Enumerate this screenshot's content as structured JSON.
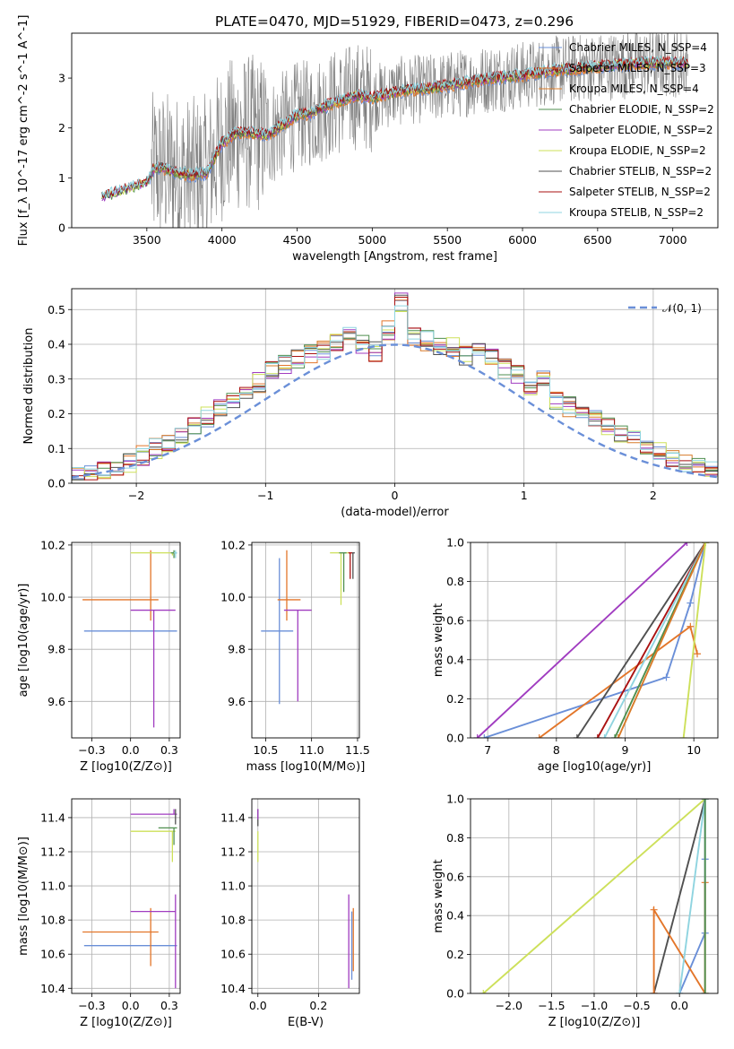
{
  "title": "PLATE=0470, MJD=51929, FIBERID=0473, z=0.296",
  "model_names": [
    "Chabrier MILES",
    "Salpeter MILES",
    "Kroupa MILES",
    "Chabrier ELODIE",
    "Salpeter ELODIE",
    "Kroupa ELODIE",
    "Chabrier STELIB",
    "Salpeter STELIB",
    "Kroupa STELIB"
  ],
  "model_nssp": [
    4,
    3,
    4,
    2,
    2,
    2,
    2,
    2,
    2
  ],
  "model_colors": [
    "#6a8fd8",
    "#e3762a",
    "#d87b2a",
    "#4f8f4f",
    "#a03cc0",
    "#cde05a",
    "#505050",
    "#aa1111",
    "#8fd4e0"
  ],
  "chart_data": [
    {
      "id": "spectrum",
      "type": "line",
      "title": "PLATE=0470, MJD=51929, FIBERID=0473, z=0.296",
      "xlabel": "wavelength [Angstrom, rest frame]",
      "ylabel": "Flux [f_λ 10^-17 erg cm^-2 s^-1 A^-1]",
      "xlim": [
        3000,
        7300
      ],
      "ylim": [
        0,
        3.9
      ],
      "xticks": [
        3500,
        4000,
        4500,
        5000,
        5500,
        6000,
        6500,
        7000
      ],
      "yticks": [
        0,
        1,
        2,
        3
      ],
      "legend": "top-right",
      "legend_entries": [
        "Chabrier MILES, N_SSP=4",
        "Salpeter MILES, N_SSP=3",
        "Kroupa MILES, N_SSP=4",
        "Chabrier ELODIE, N_SSP=2",
        "Salpeter ELODIE, N_SSP=2",
        "Kroupa ELODIE, N_SSP=2",
        "Chabrier STELIB, N_SSP=2",
        "Salpeter STELIB, N_SSP=2",
        "Kroupa STELIB, N_SSP=2"
      ],
      "model_shape": {
        "x": [
          3200,
          3300,
          3400,
          3500,
          3550,
          3600,
          3700,
          3800,
          3900,
          4000,
          4100,
          4200,
          4300,
          4400,
          4500,
          4600,
          4700,
          4800,
          4900,
          5000,
          5200,
          5400,
          5600,
          5800,
          6000,
          6200,
          6400,
          6600,
          6800,
          7000,
          7100
        ],
        "y": [
          0.6,
          0.7,
          0.8,
          0.9,
          1.2,
          1.2,
          1.1,
          1.05,
          1.1,
          1.7,
          1.9,
          1.9,
          1.85,
          2.05,
          2.25,
          2.3,
          2.45,
          2.55,
          2.65,
          2.6,
          2.75,
          2.8,
          2.9,
          3.0,
          3.05,
          3.15,
          3.2,
          3.25,
          3.3,
          3.3,
          3.3
        ]
      }
    },
    {
      "id": "residuals",
      "type": "step",
      "xlabel": "(data-model)/error",
      "ylabel": "Normed distribution",
      "xlim": [
        -2.5,
        2.5
      ],
      "ylim": [
        0,
        0.56
      ],
      "xticks": [
        -2,
        -1,
        0,
        1,
        2
      ],
      "yticks": [
        0.0,
        0.1,
        0.2,
        0.3,
        0.4,
        0.5
      ],
      "legend": "top-right",
      "legend_entries": [
        "𝒩(0, 1)"
      ],
      "bin_centers": [
        -2.45,
        -2.35,
        -2.25,
        -2.15,
        -2.05,
        -1.95,
        -1.85,
        -1.75,
        -1.65,
        -1.55,
        -1.45,
        -1.35,
        -1.25,
        -1.15,
        -1.05,
        -0.95,
        -0.85,
        -0.75,
        -0.65,
        -0.55,
        -0.45,
        -0.35,
        -0.25,
        -0.15,
        -0.05,
        0.05,
        0.15,
        0.25,
        0.35,
        0.45,
        0.55,
        0.65,
        0.75,
        0.85,
        0.95,
        1.05,
        1.15,
        1.25,
        1.35,
        1.45,
        1.55,
        1.65,
        1.75,
        1.85,
        1.95,
        2.05,
        2.15,
        2.25,
        2.35,
        2.45
      ],
      "hist_reference": [
        0.02,
        0.03,
        0.04,
        0.05,
        0.06,
        0.08,
        0.1,
        0.12,
        0.14,
        0.17,
        0.19,
        0.22,
        0.24,
        0.27,
        0.29,
        0.32,
        0.34,
        0.36,
        0.37,
        0.38,
        0.4,
        0.44,
        0.4,
        0.38,
        0.44,
        0.52,
        0.42,
        0.41,
        0.4,
        0.39,
        0.37,
        0.38,
        0.36,
        0.33,
        0.31,
        0.28,
        0.3,
        0.24,
        0.22,
        0.2,
        0.19,
        0.16,
        0.14,
        0.13,
        0.1,
        0.09,
        0.07,
        0.06,
        0.05,
        0.04
      ],
      "normal_curve": {
        "mu": 0,
        "sigma": 1
      }
    },
    {
      "id": "age-vs-z",
      "type": "errorbar",
      "xlabel": "Z [log10(Z/Z⊙)]",
      "ylabel": "age  [log10(age/yr)]",
      "xlim": [
        -0.38,
        0.32
      ],
      "ylim": [
        9.46,
        10.21
      ],
      "xticks": [
        -0.25,
        0.0,
        0.25
      ],
      "yticks": [
        9.6,
        9.8,
        10.0,
        10.2
      ],
      "points": [
        {
          "x": 0.2,
          "y": 9.87,
          "xerr": [
            0.5,
            0.1
          ],
          "yerr": [
            0.0,
            0.0
          ],
          "series": 0
        },
        {
          "x": 0.13,
          "y": 9.99,
          "xerr": [
            0.44,
            0.05
          ],
          "yerr": [
            0.08,
            0.19
          ],
          "series": 1
        },
        {
          "x": 0.15,
          "y": 9.95,
          "xerr": [
            0.15,
            0.14
          ],
          "yerr": [
            0.45,
            0.0
          ],
          "series": 4
        },
        {
          "x": 0.27,
          "y": 10.17,
          "xerr": [
            0.27,
            0.02
          ],
          "yerr": [
            0.01,
            0.0
          ],
          "series": 5
        },
        {
          "x": 0.28,
          "y": 10.17,
          "xerr": [
            0.02,
            0.02
          ],
          "yerr": [
            0.02,
            0.01
          ],
          "series": 3
        },
        {
          "x": 0.29,
          "y": 10.17,
          "xerr": [
            0.01,
            0.01
          ],
          "yerr": [
            0.02,
            0.01
          ],
          "series": 8
        }
      ]
    },
    {
      "id": "age-vs-mass",
      "type": "errorbar",
      "xlabel": "mass [log10(M/M⊙)]",
      "ylabel": "",
      "xlim": [
        10.35,
        11.52
      ],
      "ylim": [
        9.46,
        10.21
      ],
      "xticks": [
        10.5,
        11.0,
        11.5
      ],
      "yticks": [
        9.6,
        9.8,
        10.0,
        10.2
      ],
      "points": [
        {
          "x": 10.65,
          "y": 9.87,
          "xerr": [
            0.2,
            0.15
          ],
          "yerr": [
            0.28,
            0.28
          ],
          "series": 0
        },
        {
          "x": 10.73,
          "y": 9.99,
          "xerr": [
            0.1,
            0.15
          ],
          "yerr": [
            0.08,
            0.19
          ],
          "series": 1
        },
        {
          "x": 10.85,
          "y": 9.95,
          "xerr": [
            0.15,
            0.15
          ],
          "yerr": [
            0.35,
            0.0
          ],
          "series": 4
        },
        {
          "x": 11.32,
          "y": 10.17,
          "xerr": [
            0.12,
            0.1
          ],
          "yerr": [
            0.2,
            0.0
          ],
          "series": 5
        },
        {
          "x": 11.35,
          "y": 10.17,
          "xerr": [
            0.05,
            0.03
          ],
          "yerr": [
            0.15,
            0.0
          ],
          "series": 3
        },
        {
          "x": 11.42,
          "y": 10.17,
          "xerr": [
            0.02,
            0.03
          ],
          "yerr": [
            0.1,
            0.0
          ],
          "series": 7
        },
        {
          "x": 11.45,
          "y": 10.17,
          "xerr": [
            0.01,
            0.02
          ],
          "yerr": [
            0.1,
            0.0
          ],
          "series": 6
        }
      ]
    },
    {
      "id": "weight-vs-age",
      "type": "line",
      "xlabel": "age  [log10(age/yr)]",
      "ylabel": "mass weight",
      "xlim": [
        6.75,
        10.35
      ],
      "ylim": [
        0,
        1.0
      ],
      "xticks": [
        7,
        8,
        9,
        10
      ],
      "yticks": [
        0.0,
        0.2,
        0.4,
        0.6,
        0.8,
        1.0
      ],
      "series": [
        {
          "x": [
            6.95,
            9.6,
            9.95,
            10.17
          ],
          "y": [
            0.0,
            0.31,
            0.69,
            1.0
          ],
          "color": 0
        },
        {
          "x": [
            7.75,
            9.95,
            10.05
          ],
          "y": [
            0.0,
            0.57,
            0.43
          ],
          "color": 1
        },
        {
          "x": [
            6.85,
            9.9
          ],
          "y": [
            0.0,
            1.0
          ],
          "color": 4
        },
        {
          "x": [
            8.3,
            10.17
          ],
          "y": [
            0.0,
            1.0
          ],
          "color": 6
        },
        {
          "x": [
            8.6,
            10.17
          ],
          "y": [
            0.0,
            1.0
          ],
          "color": 7
        },
        {
          "x": [
            8.7,
            10.17
          ],
          "y": [
            0.0,
            1.0
          ],
          "color": 8
        },
        {
          "x": [
            8.85,
            10.17
          ],
          "y": [
            0.0,
            1.0
          ],
          "color": 3
        },
        {
          "x": [
            8.9,
            10.17
          ],
          "y": [
            0.0,
            1.0
          ],
          "color": 2
        },
        {
          "x": [
            9.85,
            10.17
          ],
          "y": [
            0.0,
            1.0
          ],
          "color": 5
        }
      ]
    },
    {
      "id": "mass-vs-z",
      "type": "errorbar",
      "xlabel": "Z [log10(Z/Z⊙)]",
      "ylabel": "mass [log10(M/M⊙)]",
      "xlim": [
        -0.38,
        0.32
      ],
      "ylim": [
        10.37,
        11.51
      ],
      "xticks": [
        -0.25,
        0.0,
        0.25
      ],
      "yticks": [
        10.4,
        10.6,
        10.8,
        11.0,
        11.2,
        11.4
      ],
      "points": [
        {
          "x": 0.2,
          "y": 10.65,
          "xerr": [
            0.5,
            0.1
          ],
          "yerr": [
            0.0,
            0.0
          ],
          "series": 0
        },
        {
          "x": 0.13,
          "y": 10.73,
          "xerr": [
            0.44,
            0.05
          ],
          "yerr": [
            0.2,
            0.14
          ],
          "series": 1
        },
        {
          "x": 0.15,
          "y": 10.85,
          "xerr": [
            0.15,
            0.14
          ],
          "yerr": [
            0.0,
            0.0
          ],
          "series": 4
        },
        {
          "x": 0.29,
          "y": 10.82,
          "xerr": [
            0.0,
            0.0
          ],
          "yerr": [
            0.42,
            0.13
          ],
          "series": 4
        },
        {
          "x": 0.27,
          "y": 11.32,
          "xerr": [
            0.27,
            0.02
          ],
          "yerr": [
            0.18,
            0.0
          ],
          "series": 5
        },
        {
          "x": 0.28,
          "y": 11.34,
          "xerr": [
            0.1,
            0.02
          ],
          "yerr": [
            0.1,
            0.0
          ],
          "series": 3
        },
        {
          "x": 0.28,
          "y": 11.42,
          "xerr": [
            0.28,
            0.02
          ],
          "yerr": [
            0.0,
            0.03
          ],
          "series": 4
        },
        {
          "x": 0.29,
          "y": 11.4,
          "xerr": [
            0.0,
            0.0
          ],
          "yerr": [
            0.04,
            0.05
          ],
          "series": 6
        }
      ]
    },
    {
      "id": "mass-vs-ebv",
      "type": "errorbar",
      "xlabel": "E(B-V)",
      "ylabel": "",
      "xlim": [
        -0.02,
        0.335
      ],
      "ylim": [
        10.37,
        11.51
      ],
      "xticks": [
        0.0,
        0.2
      ],
      "yticks": [
        10.4,
        10.6,
        10.8,
        11.0,
        11.2,
        11.4
      ],
      "points": [
        {
          "x": 0.0,
          "y": 11.32,
          "xerr": [
            0.0,
            0.0
          ],
          "yerr": [
            0.18,
            0.0
          ],
          "series": 5
        },
        {
          "x": 0.0,
          "y": 11.4,
          "xerr": [
            0.0,
            0.0
          ],
          "yerr": [
            0.05,
            0.05
          ],
          "series": 6
        },
        {
          "x": 0.0,
          "y": 11.42,
          "xerr": [
            0.0,
            0.0
          ],
          "yerr": [
            0.03,
            0.03
          ],
          "series": 4
        },
        {
          "x": 0.3,
          "y": 10.65,
          "xerr": [
            0.0,
            0.0
          ],
          "yerr": [
            0.25,
            0.3
          ],
          "series": 4
        },
        {
          "x": 0.31,
          "y": 10.65,
          "xerr": [
            0.0,
            0.0
          ],
          "yerr": [
            0.2,
            0.2
          ],
          "series": 0
        },
        {
          "x": 0.315,
          "y": 10.65,
          "xerr": [
            0.0,
            0.0
          ],
          "yerr": [
            0.15,
            0.22
          ],
          "series": 1
        }
      ]
    },
    {
      "id": "weight-vs-z",
      "type": "line",
      "xlabel": "Z [log10(Z/Z⊙)]",
      "ylabel": "mass weight",
      "xlim": [
        -2.45,
        0.45
      ],
      "ylim": [
        0,
        1.0
      ],
      "xticks": [
        -2.0,
        -1.5,
        -1.0,
        -0.5,
        0.0
      ],
      "yticks": [
        0.0,
        0.2,
        0.4,
        0.6,
        0.8,
        1.0
      ],
      "series": [
        {
          "x": [
            -2.3,
            0.3
          ],
          "y": [
            0.0,
            1.0
          ],
          "color": 5
        },
        {
          "x": [
            -0.3,
            0.3
          ],
          "y": [
            0.0,
            1.0
          ],
          "color": 6
        },
        {
          "x": [
            0.0,
            0.3,
            0.3,
            0.3
          ],
          "y": [
            0.0,
            0.31,
            0.69,
            1.0
          ],
          "color": 0
        },
        {
          "x": [
            -0.3,
            -0.3,
            0.3,
            0.3
          ],
          "y": [
            0.0,
            0.43,
            0.0,
            0.57
          ],
          "color": 1
        },
        {
          "x": [
            0.0,
            0.3
          ],
          "y": [
            0.0,
            1.0
          ],
          "color": 8
        },
        {
          "x": [
            0.3,
            0.3
          ],
          "y": [
            0.0,
            1.0
          ],
          "color": 3
        }
      ]
    }
  ]
}
